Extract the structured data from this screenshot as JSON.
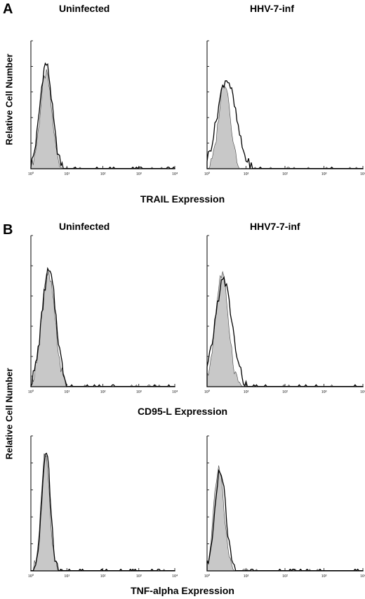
{
  "figure": {
    "panel_a": {
      "letter": "A",
      "col_left_title": "Uninfected",
      "col_right_title": "HHV-7-inf",
      "ylabel": "Relative Cell Number",
      "xlabel": "TRAIL Expression"
    },
    "panel_b": {
      "letter": "B",
      "col_left_title": "Uninfected",
      "col_right_title": "HHV7-7-inf",
      "ylabel": "Relative Cell Number",
      "xlabel_middle": "CD95-L Expression",
      "xlabel_bottom": "TNF-alpha Expression"
    },
    "x_tick_labels": [
      "10⁰",
      "10¹",
      "10²",
      "10³",
      "10⁴"
    ]
  },
  "chart_data": [
    {
      "type": "area",
      "panel": "A",
      "column": "Uninfected",
      "x_scale": "log",
      "xlim": [
        1,
        10000
      ],
      "ylim": [
        0,
        1
      ],
      "series": [
        {
          "fill": "#c8c8c8",
          "peak_log": 0.42,
          "width": 0.16,
          "height": 0.74
        },
        {
          "stroke": "#000000",
          "peak_log": 0.42,
          "width": 0.17,
          "height": 0.82
        }
      ]
    },
    {
      "type": "area",
      "panel": "A",
      "column": "HHV-7-inf",
      "x_scale": "log",
      "xlim": [
        1,
        10000
      ],
      "ylim": [
        0,
        1
      ],
      "series": [
        {
          "fill": "#c8c8c8",
          "peak_log": 0.45,
          "width": 0.15,
          "height": 0.68
        },
        {
          "stroke": "#000000",
          "peak_log": 0.5,
          "width": 0.24,
          "height": 0.7
        }
      ]
    },
    {
      "type": "area",
      "panel": "B",
      "column": "Uninfected",
      "x_scale": "log",
      "xlim": [
        1,
        10000
      ],
      "ylim": [
        0,
        1
      ],
      "series": [
        {
          "fill": "#c8c8c8",
          "peak_log": 0.48,
          "width": 0.19,
          "height": 0.74
        },
        {
          "stroke": "#000000",
          "peak_log": 0.5,
          "width": 0.2,
          "height": 0.76
        }
      ]
    },
    {
      "type": "area",
      "panel": "B",
      "column": "HHV7-7-inf",
      "x_scale": "log",
      "xlim": [
        1,
        10000
      ],
      "ylim": [
        0,
        1
      ],
      "series": [
        {
          "fill": "#c8c8c8",
          "peak_log": 0.38,
          "width": 0.17,
          "height": 0.74
        },
        {
          "stroke": "#000000",
          "peak_log": 0.42,
          "width": 0.22,
          "height": 0.7
        }
      ]
    },
    {
      "type": "area",
      "panel": "B",
      "column": "Uninfected",
      "x_scale": "log",
      "xlim": [
        1,
        10000
      ],
      "ylim": [
        0,
        1
      ],
      "series": [
        {
          "fill": "#c8c8c8",
          "peak_log": 0.4,
          "width": 0.12,
          "height": 0.88
        },
        {
          "stroke": "#000000",
          "peak_log": 0.42,
          "width": 0.12,
          "height": 0.9
        }
      ]
    },
    {
      "type": "area",
      "panel": "B",
      "column": "HHV7-7-inf",
      "x_scale": "log",
      "xlim": [
        1,
        10000
      ],
      "ylim": [
        0,
        1
      ],
      "series": [
        {
          "fill": "#c8c8c8",
          "peak_log": 0.3,
          "width": 0.13,
          "height": 0.78
        },
        {
          "stroke": "#000000",
          "peak_log": 0.34,
          "width": 0.14,
          "height": 0.74
        }
      ]
    }
  ]
}
